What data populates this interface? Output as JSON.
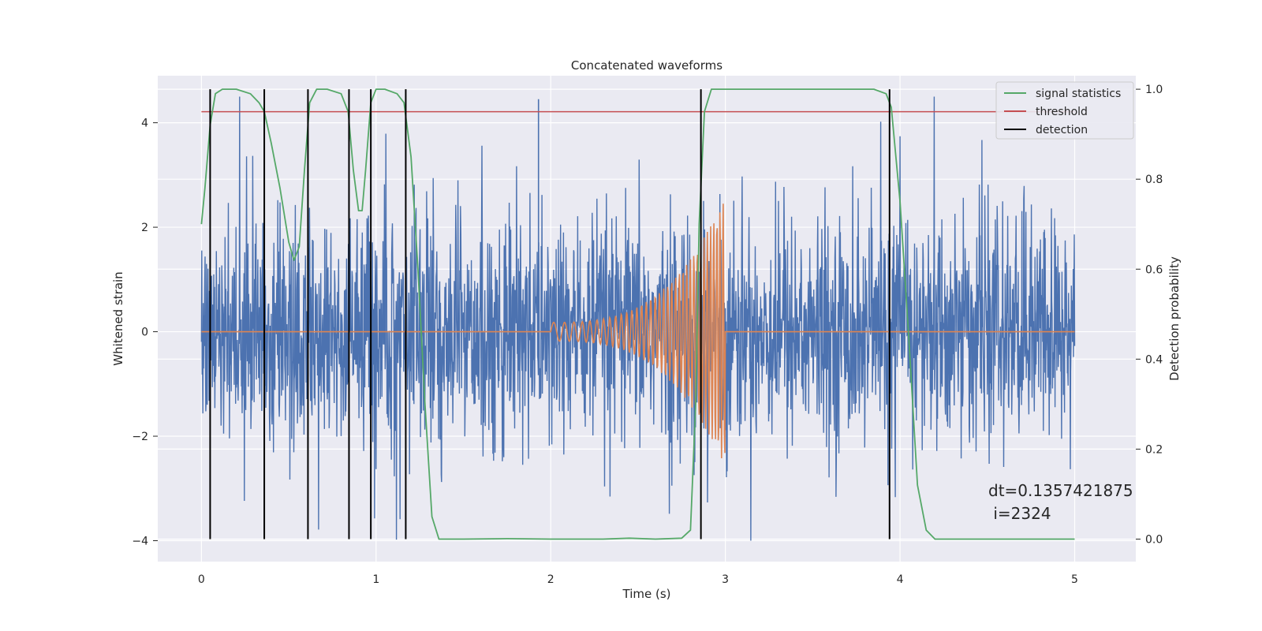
{
  "chart_data": {
    "type": "line",
    "title": "Concatenated waveforms",
    "xlabel": "Time (s)",
    "ylabel": "Whitened strain",
    "y2label": "Detection probability",
    "xlim": [
      -0.25,
      5.35
    ],
    "ylim": [
      -4.4,
      4.9
    ],
    "y2lim": [
      -0.05,
      1.03
    ],
    "xticks": [
      0,
      1,
      2,
      3,
      4,
      5
    ],
    "xtick_labels": [
      "0",
      "1",
      "2",
      "3",
      "4",
      "5"
    ],
    "yticks": [
      -4,
      -2,
      0,
      2,
      4
    ],
    "ytick_labels": [
      "−4",
      "−2",
      "0",
      "2",
      "4"
    ],
    "y2ticks": [
      0.0,
      0.2,
      0.4,
      0.6,
      0.8,
      1.0
    ],
    "y2tick_labels": [
      "0.0",
      "0.2",
      "0.4",
      "0.6",
      "0.8",
      "1.0"
    ],
    "grid": true,
    "legend_position": "top-right",
    "series": [
      {
        "id": "noise",
        "color": "#4c72b0",
        "kind": "noise",
        "x_range": [
          0,
          5
        ],
        "amplitude_range": [
          -4,
          4.5
        ],
        "axis": "left"
      },
      {
        "id": "template",
        "color": "#dd8452",
        "kind": "chirp",
        "x_range": [
          0,
          5
        ],
        "chirp_range": [
          2,
          3
        ],
        "peak_amplitude": 2.4,
        "axis": "left"
      },
      {
        "id": "signal_statistics",
        "name": "signal statistics",
        "color": "#55a868",
        "axis": "right",
        "x": [
          0,
          0.02,
          0.05,
          0.08,
          0.12,
          0.2,
          0.28,
          0.33,
          0.36,
          0.4,
          0.45,
          0.5,
          0.53,
          0.56,
          0.59,
          0.62,
          0.66,
          0.72,
          0.8,
          0.84,
          0.87,
          0.9,
          0.92,
          0.94,
          0.97,
          1.0,
          1.05,
          1.12,
          1.16,
          1.2,
          1.24,
          1.28,
          1.32,
          1.36,
          1.5,
          1.75,
          2.0,
          2.3,
          2.45,
          2.6,
          2.75,
          2.8,
          2.83,
          2.85,
          2.88,
          2.92,
          3.0,
          3.5,
          3.85,
          3.92,
          3.95,
          4.0,
          4.05,
          4.1,
          4.15,
          4.2,
          4.5,
          5.0
        ],
        "y": [
          0.7,
          0.78,
          0.92,
          0.99,
          1.0,
          1.0,
          0.99,
          0.97,
          0.95,
          0.88,
          0.78,
          0.66,
          0.62,
          0.65,
          0.82,
          0.97,
          1.0,
          1.0,
          0.99,
          0.95,
          0.82,
          0.73,
          0.73,
          0.82,
          0.97,
          1.0,
          1.0,
          0.99,
          0.97,
          0.85,
          0.6,
          0.3,
          0.05,
          0.0,
          0.0,
          0.001,
          0.0,
          0.0,
          0.002,
          0.0,
          0.002,
          0.02,
          0.3,
          0.7,
          0.95,
          1.0,
          1.0,
          1.0,
          1.0,
          0.99,
          0.96,
          0.75,
          0.45,
          0.12,
          0.02,
          0.0,
          0.0,
          0.0
        ]
      },
      {
        "id": "threshold",
        "name": "threshold",
        "color": "#c44e52",
        "axis": "right",
        "x": [
          0,
          5
        ],
        "y": [
          0.95,
          0.95
        ]
      },
      {
        "id": "detection",
        "name": "detection",
        "color": "#000000",
        "axis": "right",
        "kind": "vlines",
        "x": [
          0.05,
          0.36,
          0.61,
          0.845,
          0.97,
          1.17,
          2.86,
          3.94
        ],
        "y_range": [
          0.0,
          1.0
        ]
      }
    ],
    "annotation": {
      "line1": "dt=0.1357421875",
      "line2": " i=2324",
      "x": 4.5,
      "y": 0.11
    }
  }
}
